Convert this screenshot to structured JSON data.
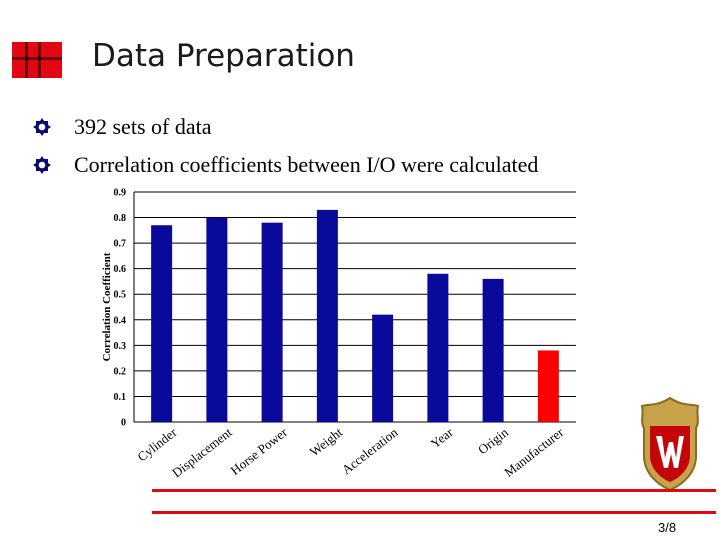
{
  "slide": {
    "title": "Data Preparation",
    "page_number": "3/8"
  },
  "bullets": [
    {
      "text": "392 sets of data",
      "icon": "bullet-icon"
    },
    {
      "text": "Correlation coefficients between I/O were calculated",
      "icon": "bullet-icon"
    }
  ],
  "colors": {
    "bar_primary": "#0a0a9a",
    "bar_highlight": "#ff0000",
    "accent_red": "#e30613"
  },
  "chart_data": {
    "type": "bar",
    "categories": [
      "Cylinder",
      "Displacement",
      "Horse Power",
      "Weight",
      "Acceleration",
      "Year",
      "Origin",
      "Manufacturer"
    ],
    "values": [
      0.77,
      0.8,
      0.78,
      0.83,
      0.42,
      0.58,
      0.56,
      0.28
    ],
    "bar_colors": [
      "#0a0a9a",
      "#0a0a9a",
      "#0a0a9a",
      "#0a0a9a",
      "#0a0a9a",
      "#0a0a9a",
      "#0a0a9a",
      "#ff0000"
    ],
    "title": "",
    "xlabel": "",
    "ylabel": "Correlation Coefficient",
    "ylim": [
      0,
      0.9
    ],
    "yticks": [
      "0",
      "0.1",
      "0.2",
      "0.3",
      "0.4",
      "0.5",
      "0.6",
      "0.7",
      "0.8",
      "0.9"
    ],
    "grid": true,
    "legend": "none"
  }
}
